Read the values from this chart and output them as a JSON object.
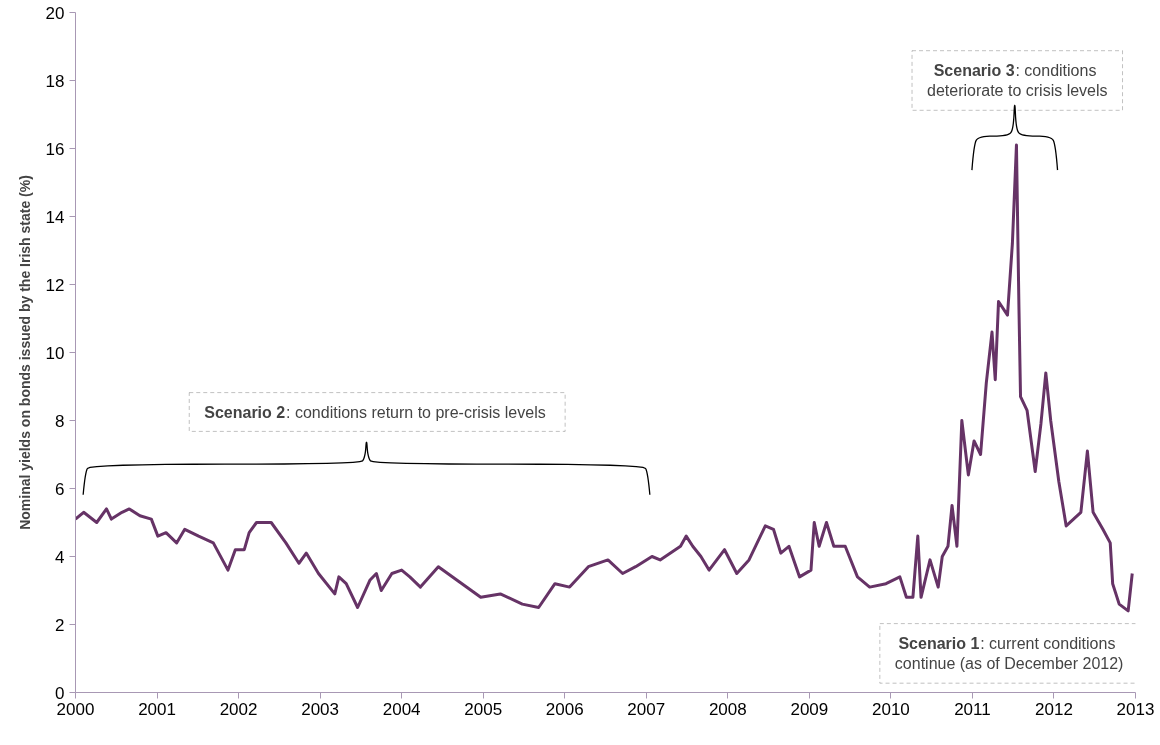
{
  "chart_data": {
    "type": "line",
    "ylabel": "Nominal yields on bonds issued by the Irish state (%)",
    "x": [
      2000.0,
      2000.1,
      2000.26,
      2000.38,
      2000.44,
      2000.57,
      2000.66,
      2000.79,
      2000.93,
      2001.01,
      2001.11,
      2001.24,
      2001.34,
      2001.51,
      2001.69,
      2001.87,
      2001.96,
      2002.07,
      2002.13,
      2002.22,
      2002.4,
      2002.58,
      2002.74,
      2002.83,
      2002.98,
      2003.18,
      2003.23,
      2003.32,
      2003.46,
      2003.61,
      2003.69,
      2003.75,
      2003.88,
      2004.0,
      2004.1,
      2004.23,
      2004.45,
      2004.68,
      2004.97,
      2005.21,
      2005.48,
      2005.68,
      2005.88,
      2006.06,
      2006.29,
      2006.53,
      2006.71,
      2006.87,
      2007.07,
      2007.17,
      2007.42,
      2007.49,
      2007.57,
      2007.67,
      2007.77,
      2007.96,
      2008.11,
      2008.26,
      2008.46,
      2008.56,
      2008.65,
      2008.75,
      2008.88,
      2009.02,
      2009.06,
      2009.12,
      2009.21,
      2009.3,
      2009.44,
      2009.59,
      2009.74,
      2009.94,
      2010.11,
      2010.19,
      2010.27,
      2010.33,
      2010.37,
      2010.48,
      2010.58,
      2010.63,
      2010.7,
      2010.75,
      2010.81,
      2010.87,
      2010.95,
      2011.02,
      2011.1,
      2011.17,
      2011.24,
      2011.28,
      2011.32,
      2011.43,
      2011.49,
      2011.54,
      2011.57,
      2011.59,
      2011.67,
      2011.77,
      2011.84,
      2011.9,
      2011.96,
      2012.06,
      2012.15,
      2012.33,
      2012.41,
      2012.48,
      2012.6,
      2012.69,
      2012.72,
      2012.8,
      2012.91,
      2012.96
    ],
    "series": [
      {
        "color": "#663366",
        "values": [
          5.1,
          5.3,
          5.0,
          5.4,
          5.1,
          5.3,
          5.4,
          5.2,
          5.1,
          4.6,
          4.7,
          4.4,
          4.8,
          4.6,
          4.4,
          3.6,
          4.2,
          4.2,
          4.7,
          5.0,
          5.0,
          4.4,
          3.8,
          4.1,
          3.5,
          2.9,
          3.4,
          3.2,
          2.5,
          3.3,
          3.5,
          3.0,
          3.5,
          3.6,
          3.4,
          3.1,
          3.7,
          3.3,
          2.8,
          2.9,
          2.6,
          2.5,
          3.2,
          3.1,
          3.7,
          3.9,
          3.5,
          3.7,
          4.0,
          3.9,
          4.3,
          4.6,
          4.3,
          4.0,
          3.6,
          4.2,
          3.5,
          3.9,
          4.9,
          4.8,
          4.1,
          4.3,
          3.4,
          3.6,
          5.0,
          4.3,
          5.0,
          4.3,
          4.3,
          3.4,
          3.1,
          3.2,
          3.4,
          2.8,
          2.8,
          4.6,
          2.8,
          3.9,
          3.1,
          4.0,
          4.3,
          5.5,
          4.3,
          8.0,
          6.4,
          7.4,
          7.0,
          9.1,
          10.6,
          9.2,
          11.5,
          11.1,
          13.2,
          16.1,
          11.4,
          8.7,
          8.3,
          6.5,
          7.9,
          9.4,
          8.0,
          6.2,
          4.9,
          5.3,
          7.1,
          5.3,
          4.8,
          4.4,
          3.2,
          2.6,
          2.4,
          3.5
        ]
      }
    ],
    "xlim": [
      2000,
      2013
    ],
    "ylim": [
      0,
      20
    ],
    "xticks": [
      2000,
      2001,
      2002,
      2003,
      2004,
      2005,
      2006,
      2007,
      2008,
      2009,
      2010,
      2011,
      2012,
      2013
    ],
    "yticks": [
      0,
      2,
      4,
      6,
      8,
      10,
      12,
      14,
      16,
      18,
      20
    ],
    "grid": false,
    "annotations": [
      "Scenario 3: conditions deteriorate to crisis levels",
      "Scenario 2: conditions return to pre-crisis levels",
      "Scenario 1: current conditions continue (as of December 2012)"
    ]
  }
}
